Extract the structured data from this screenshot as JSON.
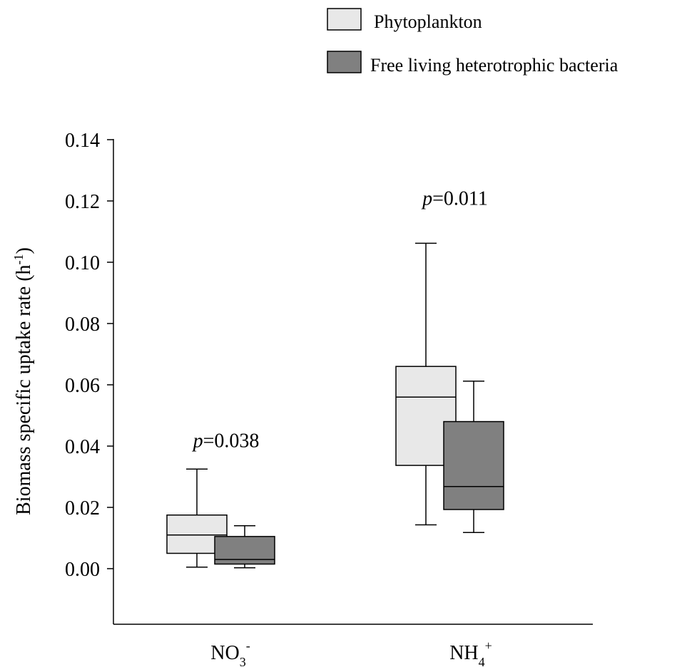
{
  "chart_data": {
    "type": "boxplot",
    "ylabel": "Biomass specific uptake rate (h",
    "ylabel_sup": "-1",
    "ylabel_close": ")",
    "ylim": [
      -0.018,
      0.14
    ],
    "yticks": [
      {
        "value": 0.0,
        "label": "0.00"
      },
      {
        "value": 0.02,
        "label": "0.02"
      },
      {
        "value": 0.04,
        "label": "0.04"
      },
      {
        "value": 0.06,
        "label": "0.06"
      },
      {
        "value": 0.08,
        "label": "0.08"
      },
      {
        "value": 0.1,
        "label": "0.10"
      },
      {
        "value": 0.12,
        "label": "0.12"
      },
      {
        "value": 0.14,
        "label": "0.14"
      }
    ],
    "categories": [
      {
        "base": "NO",
        "sub": "3",
        "sup": "-"
      },
      {
        "base": "NH",
        "sub": "4",
        "sup": "+"
      }
    ],
    "series": [
      {
        "name": "Phytoplankton",
        "color": "#e8e8e8",
        "boxes": [
          {
            "min": 0.0005,
            "q1": 0.005,
            "median": 0.011,
            "q3": 0.0175,
            "max": 0.0325
          },
          {
            "min": 0.0143,
            "q1": 0.0337,
            "median": 0.056,
            "q3": 0.066,
            "max": 0.1062
          }
        ]
      },
      {
        "name": "Free living heterotrophic bacteria",
        "color": "#808080",
        "boxes": [
          {
            "min": 0.0003,
            "q1": 0.0015,
            "median": 0.003,
            "q3": 0.0105,
            "max": 0.014
          },
          {
            "min": 0.0118,
            "q1": 0.0193,
            "median": 0.0268,
            "q3": 0.048,
            "max": 0.0612
          }
        ]
      }
    ],
    "annotations": [
      {
        "category": 0,
        "p_label": "p",
        "text": "=0.038",
        "y": 0.042
      },
      {
        "category": 1,
        "p_label": "p",
        "text": "=0.011",
        "y": 0.121
      }
    ],
    "legend_position": "top-right"
  }
}
